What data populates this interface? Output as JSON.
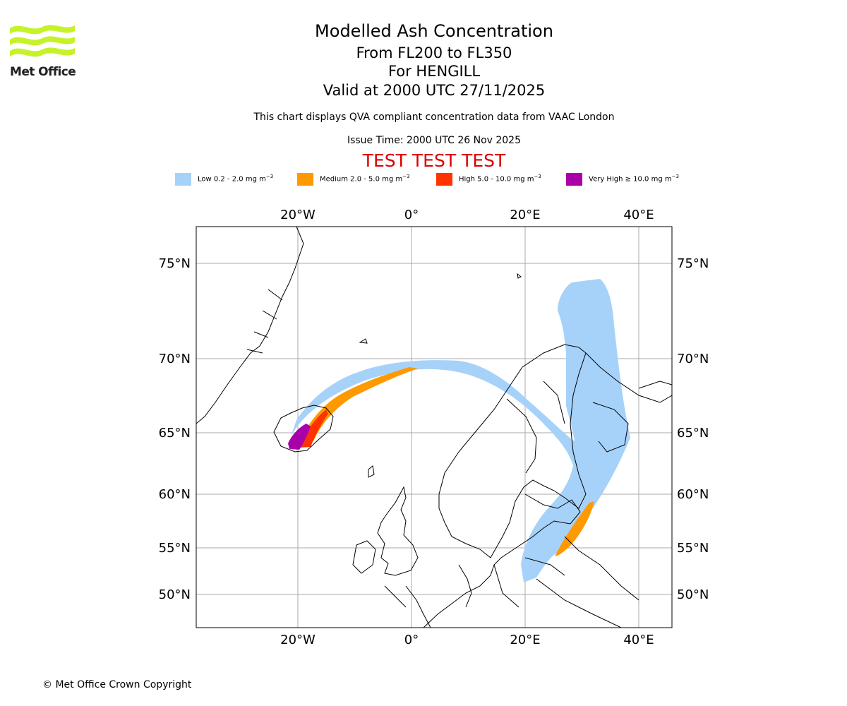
{
  "brand": {
    "name": "Met Office",
    "color": "#c6f22a"
  },
  "header": {
    "title": "Modelled Ash Concentration",
    "levels": "From FL200 to FL350",
    "volcano": "For HENGILL",
    "valid": "Valid at 2000 UTC 27/11/2025",
    "compliance": "This chart displays QVA compliant concentration data from VAAC London",
    "issue_time": "Issue Time: 2000 UTC 26 Nov 2025",
    "banner": "TEST TEST TEST",
    "banner_color": "#dd0000"
  },
  "legend": [
    {
      "label": "Low 0.2 - 2.0 mg m",
      "color": "#a6d2fa"
    },
    {
      "label": "Medium 2.0 - 5.0 mg m",
      "color": "#ff9900"
    },
    {
      "label": "High 5.0 - 10.0 mg m",
      "color": "#ff3300"
    },
    {
      "label": "Very High ≥ 10.0 mg m",
      "color": "#aa00aa"
    }
  ],
  "legend_unit_exponent": "−3",
  "map": {
    "longitude_ticks": [
      "20°W",
      "0°",
      "20°E",
      "40°E"
    ],
    "latitude_ticks": [
      "75°N",
      "70°N",
      "65°N",
      "60°N",
      "55°N",
      "50°N"
    ],
    "gridline_color": "#aaaaaa",
    "coastline_color": "#000000"
  },
  "footer": {
    "copyright": "© Met Office Crown Copyright"
  }
}
